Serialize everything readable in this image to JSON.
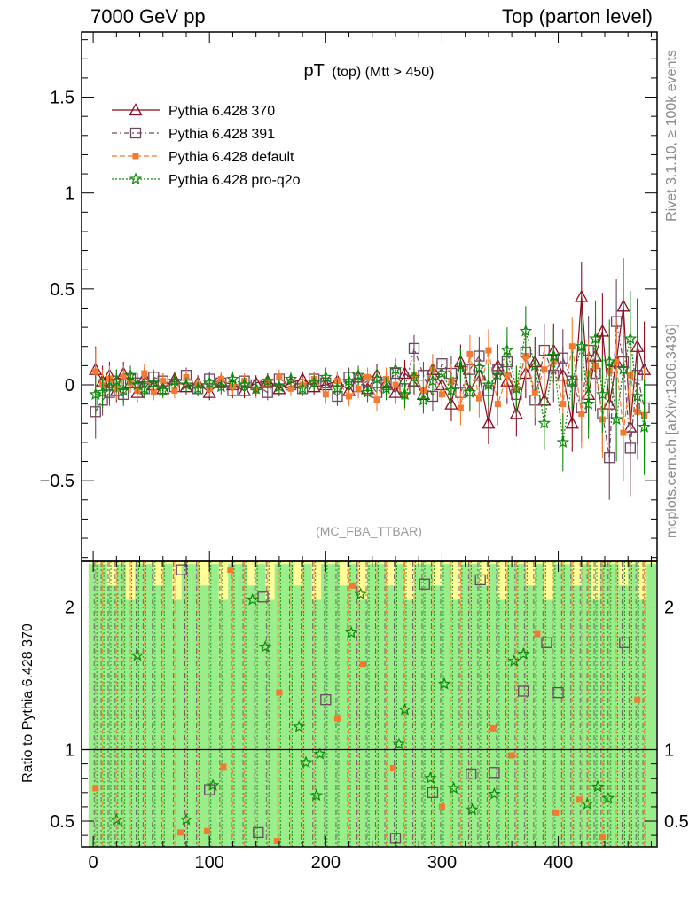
{
  "header": {
    "left": "7000 GeV pp",
    "right": "Top (parton level)"
  },
  "side": {
    "rivet": "Rivet 3.1.10, ≥ 100k events",
    "mcplots": "mcplots.cern.ch [arXiv:1306.3436]"
  },
  "chart_data": [
    {
      "type": "line",
      "title": "pT (top) (Mtt > 450)",
      "title_main": "pT",
      "title_sub": "(top) (Mtt > 450)",
      "watermark": "(MC_FBA_TTBAR)",
      "xlim": [
        -10,
        485
      ],
      "ylim": [
        -0.92,
        1.84
      ],
      "yticks": [
        -0.5,
        0,
        0.5,
        1,
        1.5
      ],
      "ytick_labels": [
        "−0.5",
        "0",
        "0.5",
        "1",
        "1.5"
      ],
      "legend_position": "top-left",
      "x": [
        2,
        8,
        14,
        20,
        26,
        32,
        38,
        44,
        52,
        60,
        70,
        80,
        90,
        100,
        110,
        120,
        130,
        140,
        150,
        160,
        170,
        180,
        190,
        200,
        210,
        220,
        228,
        236,
        244,
        252,
        260,
        268,
        276,
        284,
        292,
        300,
        308,
        316,
        324,
        332,
        340,
        348,
        356,
        364,
        372,
        380,
        388,
        396,
        404,
        412,
        420,
        426,
        432,
        438,
        444,
        450,
        456,
        462,
        468,
        474
      ],
      "series": [
        {
          "name": "Pythia 6.428 370",
          "color": "#8b0a1e",
          "marker": "triangle",
          "dash": "",
          "values": [
            0.08,
            0.02,
            0.05,
            -0.03,
            0.06,
            0.01,
            -0.04,
            0.04,
            0.0,
            -0.02,
            0.03,
            -0.01,
            0.01,
            -0.04,
            0.02,
            0.0,
            -0.03,
            0.01,
            0.02,
            -0.02,
            0.01,
            0.03,
            -0.01,
            0.0,
            0.02,
            -0.03,
            0.04,
            -0.02,
            0.05,
            0.01,
            -0.04,
            0.06,
            0.02,
            -0.05,
            0.08,
            0.0,
            -0.1,
            0.12,
            -0.03,
            0.05,
            -0.2,
            0.1,
            0.02,
            -0.15,
            0.06,
            0.12,
            -0.08,
            0.18,
            0.05,
            -0.2,
            0.46,
            -0.05,
            0.15,
            0.28,
            -0.1,
            0.12,
            0.41,
            -0.22,
            0.2,
            0.08
          ],
          "err": [
            0.12,
            0.08,
            0.07,
            0.06,
            0.06,
            0.05,
            0.05,
            0.05,
            0.04,
            0.04,
            0.04,
            0.04,
            0.04,
            0.04,
            0.04,
            0.04,
            0.04,
            0.04,
            0.04,
            0.04,
            0.04,
            0.04,
            0.04,
            0.05,
            0.05,
            0.05,
            0.05,
            0.05,
            0.06,
            0.06,
            0.06,
            0.07,
            0.07,
            0.07,
            0.08,
            0.08,
            0.09,
            0.09,
            0.1,
            0.1,
            0.11,
            0.11,
            0.12,
            0.12,
            0.13,
            0.13,
            0.14,
            0.14,
            0.15,
            0.15,
            0.18,
            0.18,
            0.2,
            0.2,
            0.22,
            0.22,
            0.25,
            0.25,
            0.25,
            0.25
          ]
        },
        {
          "name": "Pythia 6.428 391",
          "color": "#6e4561",
          "marker": "square",
          "dash": "6,3,2,3",
          "values": [
            -0.14,
            -0.08,
            -0.04,
            0.02,
            -0.05,
            0.03,
            0.01,
            -0.02,
            0.04,
            0.02,
            -0.01,
            0.05,
            -0.02,
            0.03,
            0.01,
            -0.03,
            0.02,
            0.0,
            -0.04,
            0.03,
            0.0,
            -0.02,
            0.03,
            0.01,
            -0.06,
            0.04,
            -0.01,
            0.02,
            -0.04,
            0.0,
            0.06,
            -0.02,
            0.19,
            0.05,
            -0.06,
            0.11,
            0.06,
            -0.04,
            0.08,
            0.15,
            -0.03,
            0.08,
            0.12,
            -0.05,
            0.17,
            -0.08,
            0.18,
            0.05,
            0.14,
            0.02,
            -0.12,
            0.18,
            0.06,
            -0.15,
            -0.38,
            0.33,
            0.12,
            -0.33,
            0.05,
            -0.12
          ],
          "err": [
            0.14,
            0.08,
            0.07,
            0.06,
            0.06,
            0.05,
            0.05,
            0.05,
            0.04,
            0.04,
            0.04,
            0.04,
            0.04,
            0.04,
            0.04,
            0.04,
            0.04,
            0.04,
            0.04,
            0.04,
            0.04,
            0.04,
            0.04,
            0.05,
            0.05,
            0.05,
            0.05,
            0.05,
            0.06,
            0.06,
            0.06,
            0.07,
            0.07,
            0.07,
            0.08,
            0.08,
            0.09,
            0.09,
            0.1,
            0.1,
            0.11,
            0.11,
            0.12,
            0.12,
            0.13,
            0.13,
            0.14,
            0.14,
            0.15,
            0.15,
            0.18,
            0.18,
            0.2,
            0.2,
            0.22,
            0.22,
            0.25,
            0.25,
            0.25,
            0.25
          ]
        },
        {
          "name": "Pythia 6.428 default",
          "color": "#f47a31",
          "marker": "circle",
          "dash": "6,3",
          "values": [
            0.07,
            0.0,
            0.03,
            -0.02,
            0.04,
            0.01,
            -0.03,
            0.06,
            -0.04,
            0.02,
            -0.03,
            0.04,
            0.0,
            -0.02,
            0.03,
            -0.01,
            0.02,
            -0.03,
            0.01,
            0.04,
            -0.02,
            0.0,
            0.03,
            -0.05,
            0.02,
            -0.06,
            -0.02,
            0.04,
            -0.08,
            0.03,
            0.0,
            -0.06,
            0.05,
            -0.03,
            0.08,
            -0.05,
            0.02,
            -0.12,
            0.16,
            -0.07,
            0.18,
            -0.1,
            0.05,
            -0.02,
            0.15,
            -0.04,
            0.08,
            0.12,
            -0.1,
            0.2,
            -0.15,
            0.06,
            0.1,
            -0.18,
            0.07,
            0.12,
            -0.25,
            0.05,
            -0.14,
            -0.16
          ],
          "err": [
            0.12,
            0.08,
            0.07,
            0.06,
            0.06,
            0.05,
            0.05,
            0.05,
            0.04,
            0.04,
            0.04,
            0.04,
            0.04,
            0.04,
            0.04,
            0.04,
            0.04,
            0.04,
            0.04,
            0.04,
            0.04,
            0.04,
            0.04,
            0.05,
            0.05,
            0.05,
            0.05,
            0.05,
            0.06,
            0.06,
            0.06,
            0.07,
            0.07,
            0.07,
            0.08,
            0.08,
            0.09,
            0.09,
            0.1,
            0.1,
            0.11,
            0.11,
            0.12,
            0.12,
            0.13,
            0.13,
            0.14,
            0.14,
            0.15,
            0.15,
            0.18,
            0.18,
            0.2,
            0.2,
            0.22,
            0.22,
            0.25,
            0.25,
            0.25,
            0.25
          ]
        },
        {
          "name": "Pythia 6.428 pro-q2o",
          "color": "#0a8a0a",
          "marker": "star",
          "dash": "2,2",
          "values": [
            -0.05,
            -0.04,
            -0.01,
            0.02,
            -0.03,
            0.05,
            0.0,
            -0.02,
            0.01,
            -0.03,
            0.02,
            0.0,
            -0.02,
            0.01,
            -0.01,
            0.03,
            0.0,
            -0.02,
            0.02,
            -0.01,
            0.03,
            -0.02,
            0.01,
            0.04,
            -0.02,
            0.02,
            0.05,
            -0.04,
            0.03,
            -0.02,
            0.08,
            -0.05,
            0.04,
            -0.08,
            0.02,
            0.06,
            -0.03,
            0.1,
            -0.04,
            0.09,
            0.0,
            0.05,
            0.18,
            -0.02,
            0.28,
            0.1,
            -0.2,
            0.15,
            -0.3,
            0.02,
            0.2,
            -0.1,
            0.24,
            -0.05,
            0.12,
            -0.18,
            0.08,
            0.24,
            -0.06,
            -0.22
          ],
          "err": [
            0.1,
            0.08,
            0.07,
            0.06,
            0.06,
            0.05,
            0.05,
            0.05,
            0.04,
            0.04,
            0.04,
            0.04,
            0.04,
            0.04,
            0.04,
            0.04,
            0.04,
            0.04,
            0.04,
            0.04,
            0.04,
            0.04,
            0.04,
            0.05,
            0.05,
            0.05,
            0.05,
            0.05,
            0.06,
            0.06,
            0.06,
            0.07,
            0.07,
            0.07,
            0.08,
            0.08,
            0.09,
            0.09,
            0.1,
            0.1,
            0.11,
            0.11,
            0.12,
            0.12,
            0.13,
            0.13,
            0.14,
            0.14,
            0.15,
            0.15,
            0.18,
            0.18,
            0.2,
            0.2,
            0.22,
            0.22,
            0.25,
            0.25,
            0.25,
            0.25
          ]
        }
      ]
    },
    {
      "type": "line",
      "ylabel": "Ratio to Pythia 6.428 370",
      "xlim": [
        -10,
        485
      ],
      "ylim": [
        0.32,
        2.32
      ],
      "xticks": [
        0,
        100,
        200,
        300,
        400
      ],
      "yticks": [
        0.5,
        1,
        2
      ],
      "ytick_labels": [
        "0.5",
        "1",
        "2"
      ],
      "reference_line": 1,
      "band_colors": {
        "inner": "#99ee8c",
        "outer": "#ffff99"
      },
      "points": [
        {
          "series": "Pythia 6.428 391",
          "x": [
            76,
            100,
            142,
            146,
            200,
            260,
            285,
            292,
            325,
            333,
            345,
            370,
            390,
            400,
            457
          ],
          "y": [
            2.26,
            0.72,
            0.42,
            2.07,
            1.35,
            0.38,
            2.16,
            0.7,
            0.83,
            2.19,
            0.84,
            1.41,
            1.75,
            1.4,
            1.75
          ]
        },
        {
          "series": "Pythia 6.428 default",
          "x": [
            2,
            75,
            98,
            112,
            118,
            158,
            160,
            210,
            223,
            232,
            258,
            300,
            344,
            360,
            382,
            398,
            418,
            438,
            468
          ],
          "y": [
            0.73,
            0.42,
            0.43,
            0.88,
            2.26,
            0.36,
            1.4,
            1.22,
            2.15,
            1.6,
            0.87,
            0.6,
            1.15,
            0.96,
            1.81,
            0.56,
            0.65,
            0.39,
            1.35
          ]
        },
        {
          "series": "Pythia 6.428 pro-q2o",
          "x": [
            20,
            38,
            80,
            103,
            137,
            148,
            177,
            183,
            192,
            195,
            222,
            230,
            263,
            268,
            290,
            302,
            310,
            326,
            345,
            362,
            370,
            425,
            434,
            443
          ],
          "y": [
            0.51,
            1.66,
            0.51,
            0.75,
            2.05,
            1.72,
            1.16,
            0.91,
            0.68,
            0.97,
            1.82,
            2.09,
            1.04,
            1.28,
            0.8,
            1.46,
            0.73,
            0.58,
            0.69,
            1.62,
            1.67,
            0.62,
            0.74,
            0.66
          ]
        }
      ]
    }
  ]
}
